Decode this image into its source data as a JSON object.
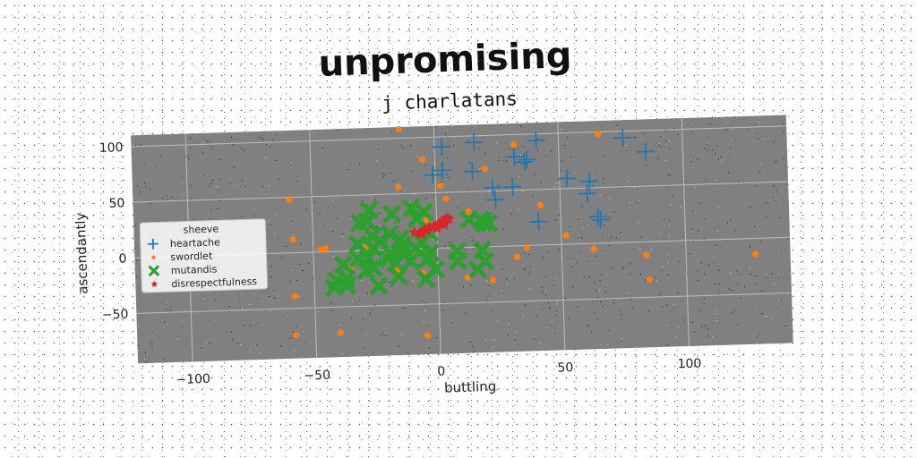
{
  "chart_data": {
    "type": "scatter",
    "title": "unpromising",
    "subtitle": "j charlatans",
    "xlabel": "buttling",
    "ylabel": "ascendantly",
    "xlim": [
      -122,
      142
    ],
    "ylim": [
      -95,
      110
    ],
    "x_ticks": [
      -100,
      -50,
      0,
      50,
      100
    ],
    "y_ticks": [
      100,
      50,
      0,
      -50
    ],
    "x_tick_labels": [
      "−100",
      "−50",
      "0",
      "50",
      "100"
    ],
    "y_tick_labels": [
      "100",
      "50",
      "0",
      "−50"
    ],
    "grid": true,
    "legend_position": "center-left",
    "legend_title": "sheeve",
    "series": [
      {
        "name": "heartache",
        "marker": "plus",
        "color": "#1f77b4",
        "points": [
          [
            3,
            91
          ],
          [
            16,
            94
          ],
          [
            41,
            94
          ],
          [
            76,
            94
          ],
          [
            85,
            81
          ],
          [
            32,
            80
          ],
          [
            37,
            77
          ],
          [
            36,
            75
          ],
          [
            3,
            70
          ],
          [
            15,
            68
          ],
          [
            -1,
            66
          ],
          [
            23,
            53
          ],
          [
            31,
            53
          ],
          [
            53,
            59
          ],
          [
            62,
            56
          ],
          [
            61,
            45
          ],
          [
            24,
            42
          ],
          [
            65,
            24
          ],
          [
            66,
            21
          ],
          [
            41,
            21
          ]
        ]
      },
      {
        "name": "swordlet",
        "marker": "circle",
        "color": "#ff7f0e",
        "points": [
          [
            -14,
            108
          ],
          [
            -5,
            80
          ],
          [
            66,
            98
          ],
          [
            32,
            91
          ],
          [
            20,
            70
          ],
          [
            2,
            56
          ],
          [
            -15,
            56
          ],
          [
            -59,
            48
          ],
          [
            4,
            44
          ],
          [
            42,
            36
          ],
          [
            13,
            32
          ],
          [
            -4,
            26
          ],
          [
            -58,
            12
          ],
          [
            -47,
            2
          ],
          [
            -45,
            3
          ],
          [
            -29,
            3
          ],
          [
            52,
            8
          ],
          [
            63,
            -5
          ],
          [
            36,
            -2
          ],
          [
            32,
            -10
          ],
          [
            84,
            -12
          ],
          [
            128,
            -14
          ],
          [
            -35,
            -15
          ],
          [
            -16,
            -18
          ],
          [
            -6,
            -22
          ],
          [
            12,
            -27
          ],
          [
            22,
            -30
          ],
          [
            -5,
            -28
          ],
          [
            85,
            -34
          ],
          [
            -58,
            -39
          ],
          [
            -58,
            -74
          ],
          [
            -40,
            -73
          ],
          [
            -5,
            -78
          ]
        ]
      },
      {
        "name": "mutandis",
        "marker": "x-thick",
        "color": "#2ca02c",
        "points": [
          [
            -27,
            36
          ],
          [
            -10,
            37
          ],
          [
            -5,
            33
          ],
          [
            -18,
            32
          ],
          [
            -8,
            27
          ],
          [
            -28,
            26
          ],
          [
            -31,
            25
          ],
          [
            13,
            25
          ],
          [
            18,
            24
          ],
          [
            19,
            21
          ],
          [
            21,
            21
          ],
          [
            -19,
            14
          ],
          [
            -3,
            14
          ],
          [
            -26,
            13
          ],
          [
            -15,
            9
          ],
          [
            -23,
            8
          ],
          [
            -32,
            6
          ],
          [
            -6,
            6
          ],
          [
            -14,
            4
          ],
          [
            -26,
            2
          ],
          [
            -9,
            1
          ],
          [
            -14,
            -1
          ],
          [
            -19,
            -3
          ],
          [
            18,
            -3
          ],
          [
            8,
            -3
          ],
          [
            -3,
            -4
          ],
          [
            -32,
            -7
          ],
          [
            -28,
            -7
          ],
          [
            -20,
            -8
          ],
          [
            -4,
            -9
          ],
          [
            -11,
            -11
          ],
          [
            -17,
            -12
          ],
          [
            8,
            -12
          ],
          [
            -38,
            -12
          ],
          [
            19,
            -13
          ],
          [
            -26,
            -16
          ],
          [
            -29,
            -18
          ],
          [
            -1,
            -19
          ],
          [
            16,
            -20
          ],
          [
            -16,
            -24
          ],
          [
            -5,
            -27
          ],
          [
            -37,
            -25
          ],
          [
            -41,
            -26
          ],
          [
            -37,
            -31
          ],
          [
            -42,
            -32
          ],
          [
            -24,
            -32
          ]
        ]
      },
      {
        "name": "disrespectfulness",
        "marker": "star",
        "color": "#d62728",
        "points": [
          [
            -9,
            15
          ],
          [
            -7,
            14
          ],
          [
            -5,
            17
          ],
          [
            -3,
            19
          ],
          [
            -1,
            20
          ],
          [
            1,
            22
          ],
          [
            3,
            24
          ],
          [
            4,
            27
          ],
          [
            5,
            26
          ],
          [
            2,
            23
          ],
          [
            -4,
            16
          ],
          [
            -6,
            13
          ],
          [
            0,
            18
          ],
          [
            3,
            21
          ]
        ]
      }
    ]
  }
}
